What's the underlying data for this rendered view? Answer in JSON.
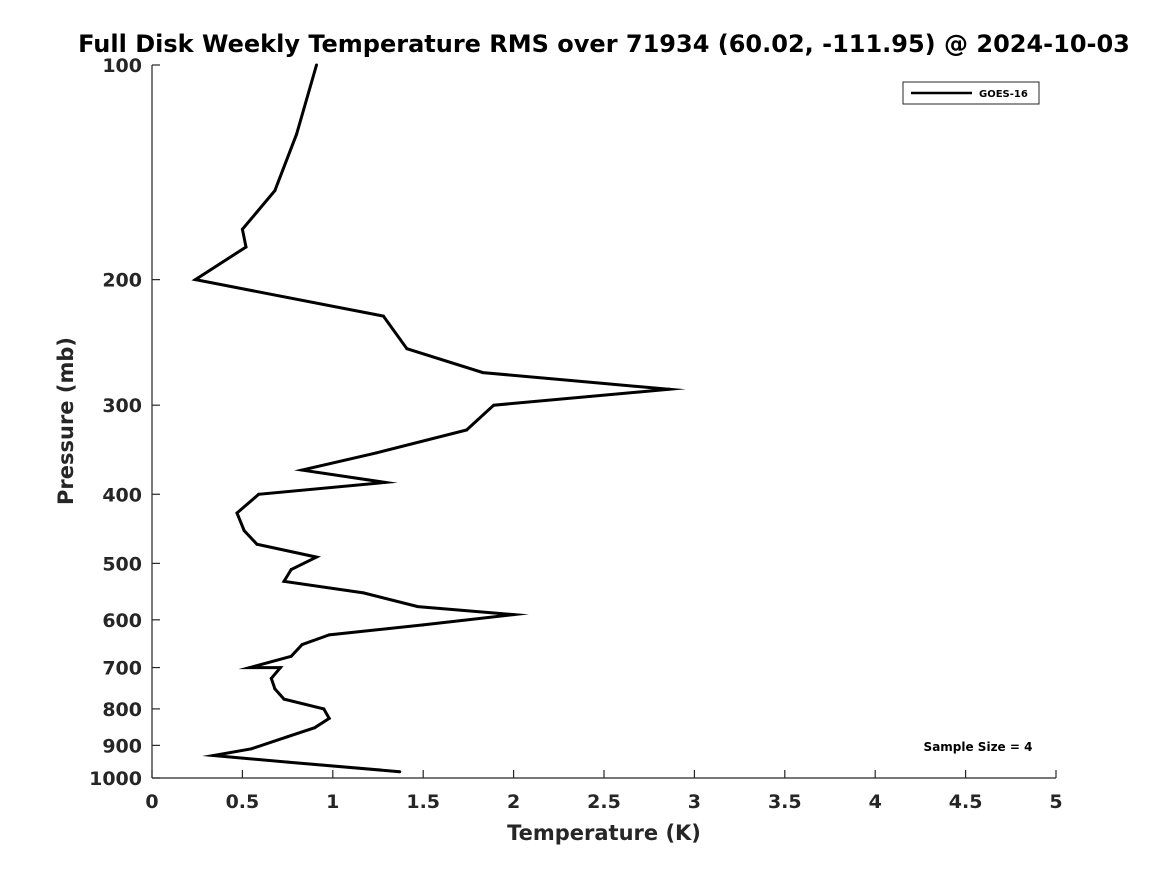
{
  "chart_data": {
    "type": "line",
    "title": "Full Disk Weekly Temperature RMS over 71934 (60.02, -111.95) @ 2024-10-03",
    "xlabel": "Temperature (K)",
    "ylabel": "Pressure (mb)",
    "xlim": [
      0,
      5
    ],
    "ylim": [
      100,
      1000
    ],
    "y_scale": "log",
    "y_reversed": true,
    "xticks": [
      "0",
      "0.5",
      "1",
      "1.5",
      "2",
      "2.5",
      "3",
      "3.5",
      "4",
      "4.5",
      "5"
    ],
    "yticks": [
      "100",
      "200",
      "300",
      "400",
      "500",
      "600",
      "700",
      "800",
      "900",
      "1000"
    ],
    "grid": false,
    "legend_position": "top-right",
    "series": [
      {
        "name": "GOES-16",
        "color": "#000000",
        "x": [
          0.91,
          0.8,
          0.68,
          0.5,
          0.52,
          0.24,
          1.28,
          1.41,
          1.83,
          2.86,
          1.89,
          1.74,
          1.24,
          0.83,
          1.29,
          0.59,
          0.47,
          0.51,
          0.58,
          0.91,
          0.77,
          0.73,
          1.17,
          1.47,
          2.0,
          1.5,
          0.98,
          0.83,
          0.77,
          0.54,
          0.71,
          0.66,
          0.68,
          0.73,
          0.95,
          0.98,
          0.9,
          0.75,
          0.55,
          0.34,
          0.75,
          1.37
        ],
        "y": [
          100,
          125,
          150,
          170,
          180,
          200,
          225,
          250,
          270,
          285,
          300,
          325,
          350,
          370,
          385,
          400,
          425,
          450,
          470,
          490,
          510,
          530,
          550,
          575,
          590,
          610,
          630,
          650,
          675,
          700,
          700,
          725,
          750,
          775,
          800,
          825,
          850,
          875,
          910,
          930,
          950,
          980
        ]
      }
    ],
    "annotations": [
      "Sample Size = 4"
    ]
  }
}
